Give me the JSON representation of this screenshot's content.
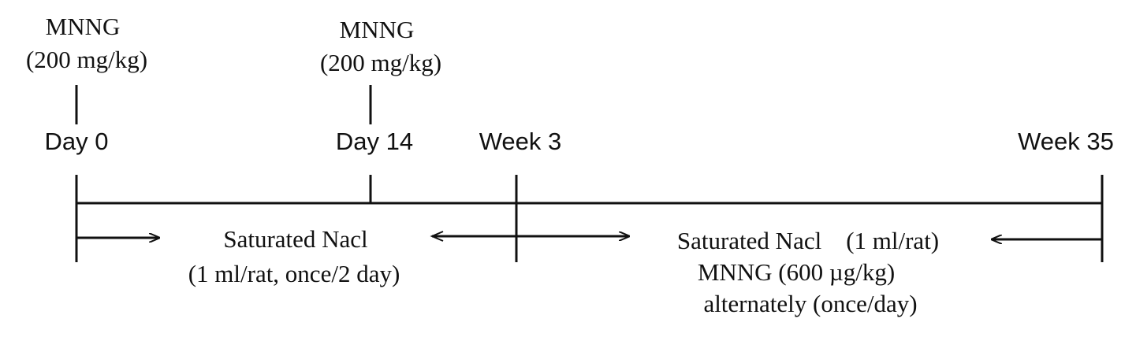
{
  "time_points": [
    "Day 0",
    "Day 14",
    "Week 3",
    "Week 35"
  ],
  "doses": [
    {
      "lines": [
        "MNNG",
        "(200 mg/kg)"
      ]
    },
    {
      "lines": [
        "MNNG",
        "(200 mg/kg)"
      ]
    }
  ],
  "phases": [
    {
      "lines": [
        "Saturated Nacl",
        "(1 ml/rat, once/2 day)"
      ]
    },
    {
      "lines": [
        "Saturated Nacl (1 ml/rat)",
        "MNNG (600 µg/kg)",
        "alternately (once/day)"
      ]
    }
  ]
}
